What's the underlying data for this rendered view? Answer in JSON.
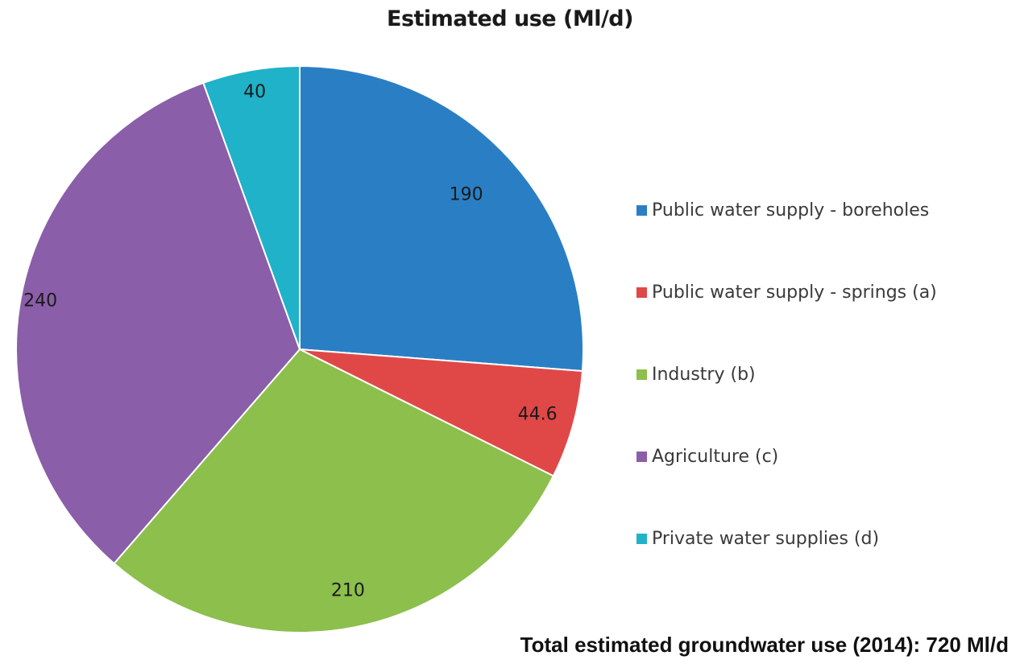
{
  "chart_data": {
    "type": "pie",
    "title": "Estimated use (Ml/d)",
    "categories": [
      "Public water supply - boreholes",
      "Public water supply - springs (a)",
      "Industry (b)",
      "Agriculture (c)",
      "Private water supplies (d)"
    ],
    "values": [
      190,
      44.6,
      210,
      240,
      40
    ],
    "value_labels": [
      "190",
      "44.6",
      "210",
      "240",
      "40"
    ],
    "colors": [
      "#2a7fc4",
      "#e04848",
      "#8cbf4c",
      "#8a5ea8",
      "#1fb2c8"
    ],
    "start": "12 o'clock",
    "direction": "clockwise",
    "legend_position": "right"
  },
  "footnote": "Total estimated groundwater use (2014): 720 Ml/d"
}
